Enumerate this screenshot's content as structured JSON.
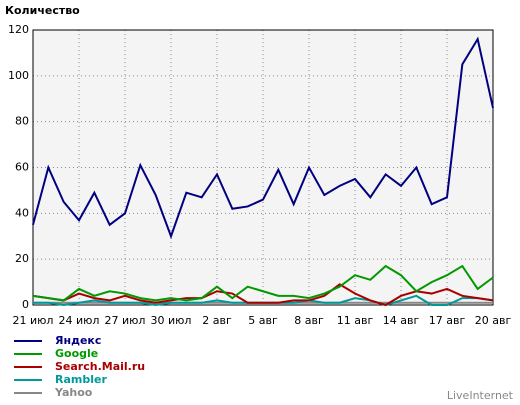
{
  "chart_data": {
    "type": "line",
    "title": "Количество",
    "categories": [
      "21 июл",
      null,
      null,
      "24 июл",
      null,
      null,
      "27 июл",
      null,
      null,
      "30 июл",
      null,
      null,
      "2 авг",
      null,
      null,
      "5 авг",
      null,
      null,
      "8 авг",
      null,
      null,
      "11 авг",
      null,
      null,
      "14 авг",
      null,
      null,
      "17 авг",
      null,
      null,
      "20 авг"
    ],
    "series": [
      {
        "name": "Яндекс",
        "color": "#000080",
        "values": [
          35,
          60,
          45,
          37,
          49,
          35,
          40,
          61,
          48,
          30,
          49,
          47,
          57,
          42,
          43,
          46,
          59,
          44,
          60,
          48,
          52,
          55,
          47,
          57,
          52,
          60,
          44,
          47,
          105,
          116,
          86
        ]
      },
      {
        "name": "Google",
        "color": "#009900",
        "values": [
          4,
          3,
          2,
          7,
          4,
          6,
          5,
          3,
          2,
          3,
          2,
          3,
          8,
          3,
          8,
          6,
          4,
          4,
          3,
          5,
          8,
          13,
          11,
          17,
          13,
          6,
          10,
          13,
          17,
          7,
          12
        ]
      },
      {
        "name": "Search.Mail.ru",
        "color": "#aa0000",
        "values": [
          4,
          3,
          2,
          5,
          3,
          2,
          4,
          2,
          1,
          2,
          3,
          3,
          6,
          5,
          1,
          1,
          1,
          2,
          2,
          4,
          9,
          5,
          2,
          0,
          4,
          6,
          5,
          7,
          4,
          3,
          2
        ]
      },
      {
        "name": "Rambler",
        "color": "#009999",
        "values": [
          1,
          1,
          0,
          1,
          2,
          1,
          1,
          1,
          0,
          1,
          1,
          1,
          2,
          1,
          1,
          1,
          1,
          1,
          2,
          1,
          1,
          3,
          2,
          0,
          2,
          4,
          0,
          0,
          3,
          3,
          2
        ]
      },
      {
        "name": "Yahoo",
        "color": "#888888",
        "values": [
          1,
          1,
          1,
          1,
          1,
          1,
          1,
          1,
          1,
          1,
          1,
          1,
          1,
          1,
          1,
          1,
          1,
          1,
          1,
          1,
          1,
          1,
          1,
          1,
          1,
          1,
          1,
          1,
          1,
          1,
          1
        ]
      }
    ],
    "ylim": [
      0,
      120
    ],
    "yticks": [
      0,
      20,
      40,
      60,
      80,
      100,
      120
    ],
    "grid": true,
    "brand": "LiveInternet"
  }
}
